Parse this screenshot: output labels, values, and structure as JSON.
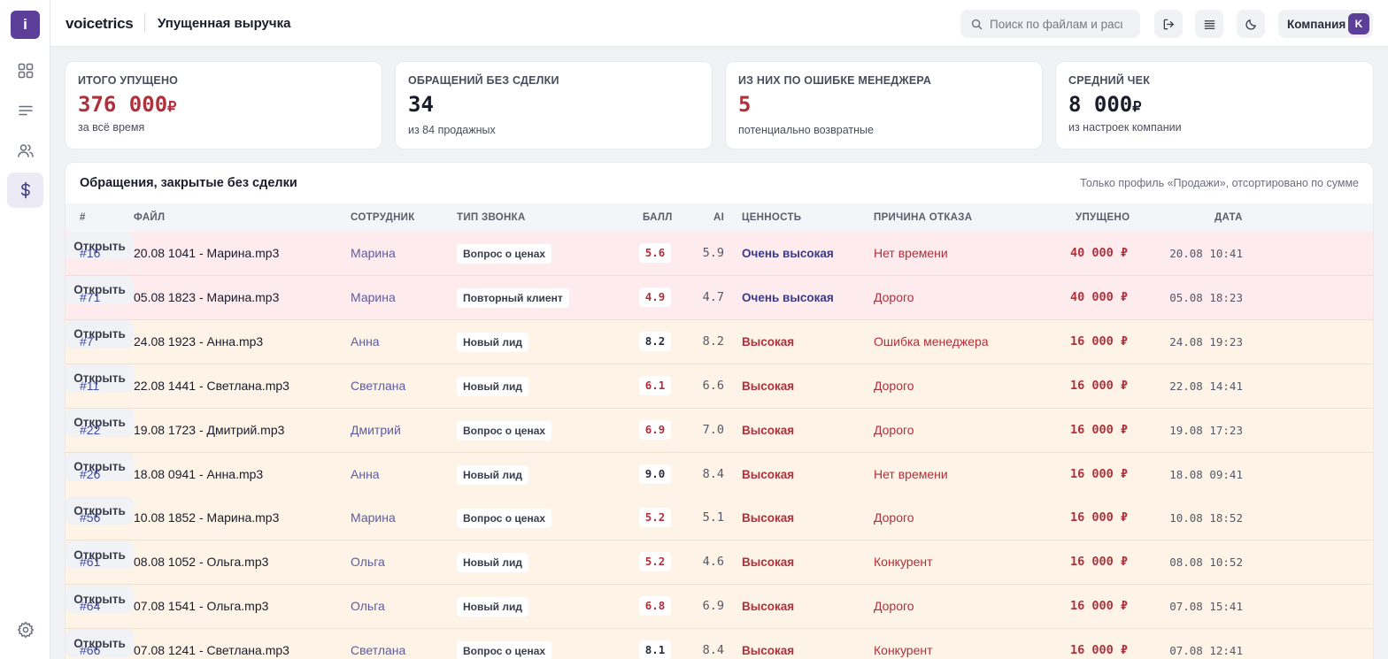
{
  "app": {
    "logo_letter": "i",
    "brand": "voicetrics",
    "page_title": "Упущенная выручка"
  },
  "search": {
    "placeholder": "Поиск по файлам и расш"
  },
  "company": {
    "label": "Компания",
    "avatar": "K"
  },
  "sidebar": {
    "items": [
      {
        "icon": "grid-icon"
      },
      {
        "icon": "list-icon"
      },
      {
        "icon": "users-icon"
      },
      {
        "icon": "dollar-icon",
        "active": true
      }
    ],
    "bottom_icon": "gear-icon"
  },
  "toolbar_icons": [
    "logout-icon",
    "menu-icon",
    "moon-icon"
  ],
  "cards": [
    {
      "label": "ИТОГО УПУЩЕНО",
      "value": "376 000",
      "currency": "₽",
      "sub": "за всё время"
    },
    {
      "label": "ОБРАЩЕНИЙ БЕЗ СДЕЛКИ",
      "value": "34",
      "currency": "",
      "sub": "из 84 продажных"
    },
    {
      "label": "ИЗ НИХ ПО ОШИБКЕ МЕНЕДЖЕРА",
      "value": "5",
      "currency": "",
      "sub": "потенциально возвратные"
    },
    {
      "label": "СРЕДНИЙ ЧЕК",
      "value": "8 000",
      "currency": "₽",
      "sub": "из настроек компании"
    }
  ],
  "table": {
    "title": "Обращения, закрытые без сделки",
    "note": "Только профиль «Продажи», отсортировано по сумме",
    "headers": {
      "num": "#",
      "file": "ФАЙЛ",
      "employee": "СОТРУДНИК",
      "call_type": "ТИП ЗВОНКА",
      "score": "БАЛЛ",
      "ai": "AI",
      "value": "ЦЕННОСТЬ",
      "reason": "ПРИЧИНА ОТКАЗА",
      "lost": "УПУЩЕНО",
      "date": "ДАТА"
    },
    "open_label": "Открыть",
    "rows": [
      {
        "num": "#16",
        "file": "20.08 1041 - Марина.mp3",
        "employee": "Марина",
        "call_type": "Вопрос о ценах",
        "score": "5.6",
        "ai": "5.9",
        "value": "Очень высокая",
        "reason": "Нет времени",
        "lost": "40 000 ₽",
        "date": "20.08 10:41"
      },
      {
        "num": "#71",
        "file": "05.08 1823 - Марина.mp3",
        "employee": "Марина",
        "call_type": "Повторный клиент",
        "score": "4.9",
        "ai": "4.7",
        "value": "Очень высокая",
        "reason": "Дорого",
        "lost": "40 000 ₽",
        "date": "05.08 18:23"
      },
      {
        "num": "#7",
        "file": "24.08 1923 - Анна.mp3",
        "employee": "Анна",
        "call_type": "Новый лид",
        "score": "8.2",
        "ai": "8.2",
        "value": "Высокая",
        "reason": "Ошибка менеджера",
        "lost": "16 000 ₽",
        "date": "24.08 19:23"
      },
      {
        "num": "#11",
        "file": "22.08 1441 - Светлана.mp3",
        "employee": "Светлана",
        "call_type": "Новый лид",
        "score": "6.1",
        "ai": "6.6",
        "value": "Высокая",
        "reason": "Дорого",
        "lost": "16 000 ₽",
        "date": "22.08 14:41"
      },
      {
        "num": "#22",
        "file": "19.08 1723 - Дмитрий.mp3",
        "employee": "Дмитрий",
        "call_type": "Вопрос о ценах",
        "score": "6.9",
        "ai": "7.0",
        "value": "Высокая",
        "reason": "Дорого",
        "lost": "16 000 ₽",
        "date": "19.08 17:23"
      },
      {
        "num": "#26",
        "file": "18.08 0941 - Анна.mp3",
        "employee": "Анна",
        "call_type": "Новый лид",
        "score": "9.0",
        "ai": "8.4",
        "value": "Высокая",
        "reason": "Нет времени",
        "lost": "16 000 ₽",
        "date": "18.08 09:41"
      },
      {
        "num": "#56",
        "file": "10.08 1852 - Марина.mp3",
        "employee": "Марина",
        "call_type": "Вопрос о ценах",
        "score": "5.2",
        "ai": "5.1",
        "value": "Высокая",
        "reason": "Дорого",
        "lost": "16 000 ₽",
        "date": "10.08 18:52"
      },
      {
        "num": "#61",
        "file": "08.08 1052 - Ольга.mp3",
        "employee": "Ольга",
        "call_type": "Новый лид",
        "score": "5.2",
        "ai": "4.6",
        "value": "Высокая",
        "reason": "Конкурент",
        "lost": "16 000 ₽",
        "date": "08.08 10:52"
      },
      {
        "num": "#64",
        "file": "07.08 1541 - Ольга.mp3",
        "employee": "Ольга",
        "call_type": "Новый лид",
        "score": "6.8",
        "ai": "6.9",
        "value": "Высокая",
        "reason": "Дорого",
        "lost": "16 000 ₽",
        "date": "07.08 15:41"
      },
      {
        "num": "#66",
        "file": "07.08 1241 - Светлана.mp3",
        "employee": "Светлана",
        "call_type": "Вопрос о ценах",
        "score": "8.1",
        "ai": "8.4",
        "value": "Высокая",
        "reason": "Конкурент",
        "lost": "16 000 ₽",
        "date": "07.08 12:41"
      }
    ]
  }
}
